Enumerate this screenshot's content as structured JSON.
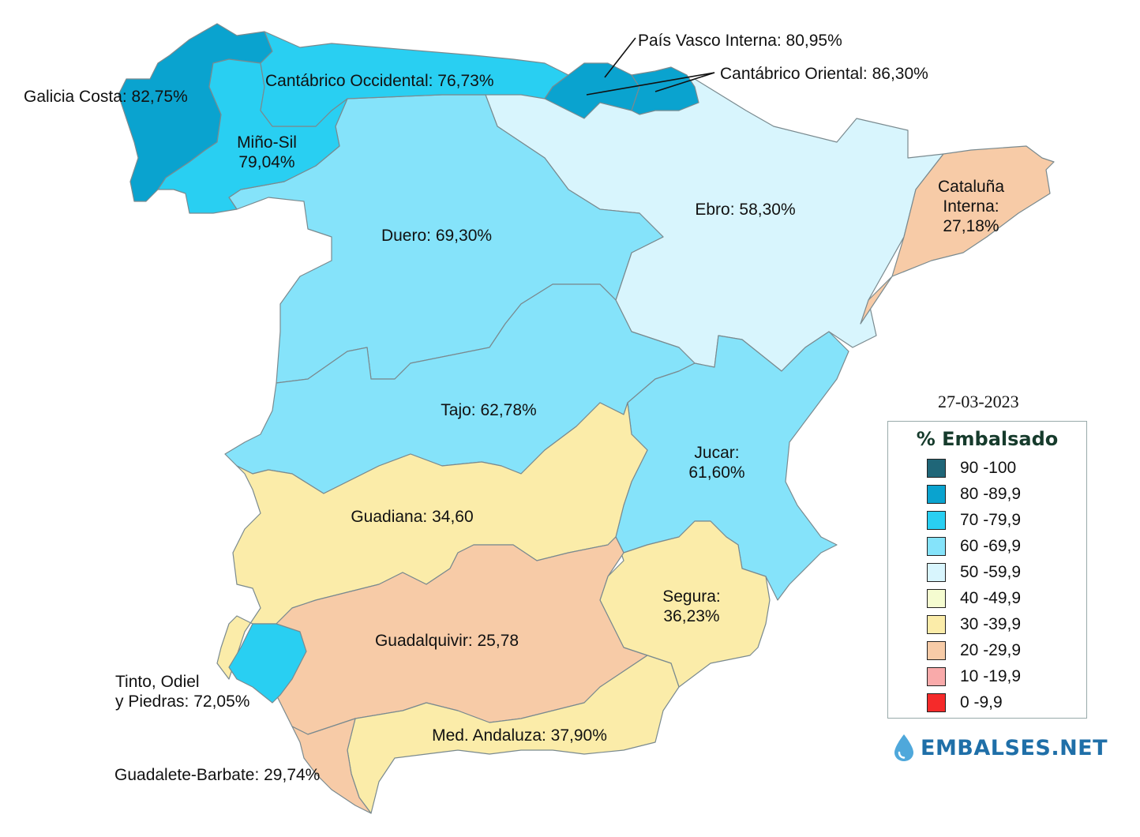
{
  "basins": [
    {
      "id": "galicia-costa",
      "label": [
        "Galicia Costa: 82,75%"
      ],
      "color": "#0aa3cf"
    },
    {
      "id": "cantabrico-occidental",
      "label": [
        "Cantábrico Occidental: 76,73%"
      ],
      "color": "#29cff2"
    },
    {
      "id": "mino-sil",
      "label": [
        "Miño-Sil",
        "79,04%"
      ],
      "color": "#29cff2"
    },
    {
      "id": "pais-vasco-interna",
      "label": [
        "País Vasco Interna: 80,95%"
      ],
      "color": "#0aa3cf"
    },
    {
      "id": "cantabrico-oriental",
      "label": [
        "Cantábrico Oriental: 86,30%"
      ],
      "color": "#0aa3cf"
    },
    {
      "id": "ebro",
      "label": [
        "Ebro: 58,30%"
      ],
      "color": "#d8f5fd"
    },
    {
      "id": "cataluna-interna",
      "label": [
        "Cataluña",
        "Interna:",
        "27,18%"
      ],
      "color": "#f7cba7"
    },
    {
      "id": "duero",
      "label": [
        "Duero: 69,30%"
      ],
      "color": "#85e3fa"
    },
    {
      "id": "tajo",
      "label": [
        "Tajo: 62,78%"
      ],
      "color": "#85e3fa"
    },
    {
      "id": "jucar",
      "label": [
        "Jucar:",
        "61,60%"
      ],
      "color": "#85e3fa"
    },
    {
      "id": "guadiana",
      "label": [
        "Guadiana: 34,60"
      ],
      "color": "#fbeca9"
    },
    {
      "id": "segura",
      "label": [
        "Segura:",
        "36,23%"
      ],
      "color": "#fbeca9"
    },
    {
      "id": "guadalquivir",
      "label": [
        "Guadalquivir: 25,78"
      ],
      "color": "#f7cba7"
    },
    {
      "id": "tinto-odiel-piedras",
      "label": [
        "Tinto, Odiel",
        "y Piedras: 72,05%"
      ],
      "color": "#29cff2"
    },
    {
      "id": "med-andaluza",
      "label": [
        "Med. Andaluza: 37,90%"
      ],
      "color": "#fbeca9"
    },
    {
      "id": "guadalete-barbate",
      "label": [
        "Guadalete-Barbate: 29,74%"
      ],
      "color": "#f7cba7"
    }
  ],
  "date": "27-03-2023",
  "legend": {
    "title": "% Embalsado",
    "items": [
      {
        "label": "90 -100",
        "color": "#1f6678"
      },
      {
        "label": "80 -89,9",
        "color": "#0aa3cf"
      },
      {
        "label": "70 -79,9",
        "color": "#29cff2"
      },
      {
        "label": "60 -69,9",
        "color": "#85e3fa"
      },
      {
        "label": "50 -59,9",
        "color": "#d8f5fd"
      },
      {
        "label": "40 -49,9",
        "color": "#f5fcd0"
      },
      {
        "label": "30 -39,9",
        "color": "#fbeca9"
      },
      {
        "label": "20 -29,9",
        "color": "#f7cba7"
      },
      {
        "label": "10 -19,9",
        "color": "#f9aaaa"
      },
      {
        "label": "0 -9,9",
        "color": "#f52a2a"
      }
    ]
  },
  "brand": {
    "name": "EMBALSES.NET",
    "icon": "water-drop-icon",
    "color": "#1f6fa8"
  }
}
